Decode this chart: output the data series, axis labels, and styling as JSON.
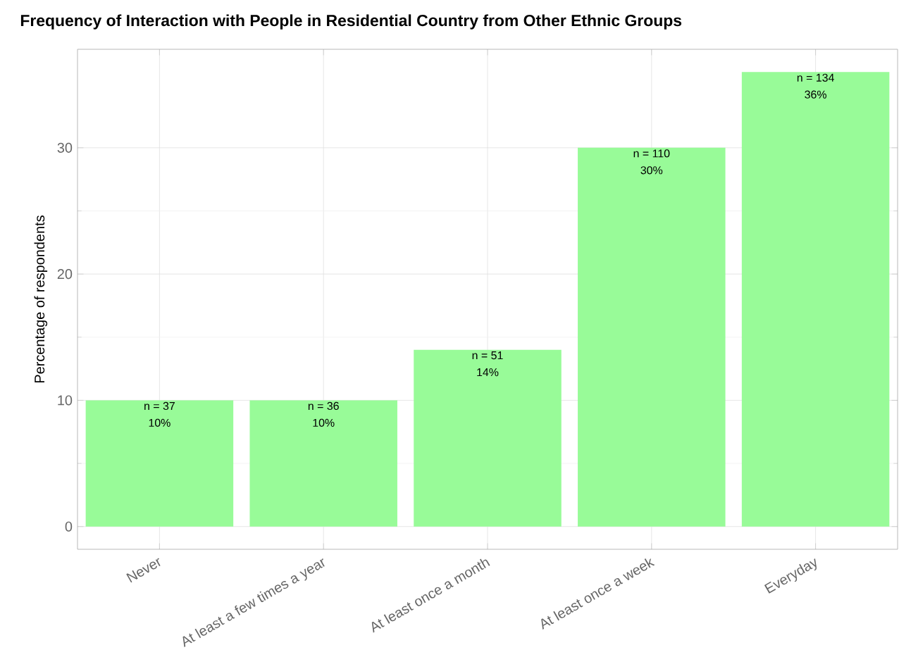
{
  "chart_data": {
    "type": "bar",
    "title": "Frequency of Interaction with People in Residential Country from Other Ethnic Groups",
    "ylabel": "Percentage of respondents",
    "categories": [
      "Never",
      "At least a few times a year",
      "At least once a month",
      "At least once a week",
      "Everyday"
    ],
    "values": [
      10,
      10,
      14,
      30,
      36
    ],
    "color": "#98fb98",
    "value_labels": [
      "10%",
      "10%",
      "14%",
      "30%",
      "36%"
    ],
    "annotations": [
      {
        "text": "n = 37",
        "x": "Never",
        "y": 10
      },
      {
        "text": "n = 36",
        "x": "At least a few times a year",
        "y": 10
      },
      {
        "text": "n = 51",
        "x": "At least once a month",
        "y": 14
      },
      {
        "text": "n = 110",
        "x": "At least once a week",
        "y": 30
      },
      {
        "text": "n = 134",
        "x": "Everyday",
        "y": 36
      }
    ],
    "ylim": [
      -1.8,
      37.8
    ],
    "yticks": [
      0,
      10,
      20,
      30
    ],
    "grid": true
  }
}
